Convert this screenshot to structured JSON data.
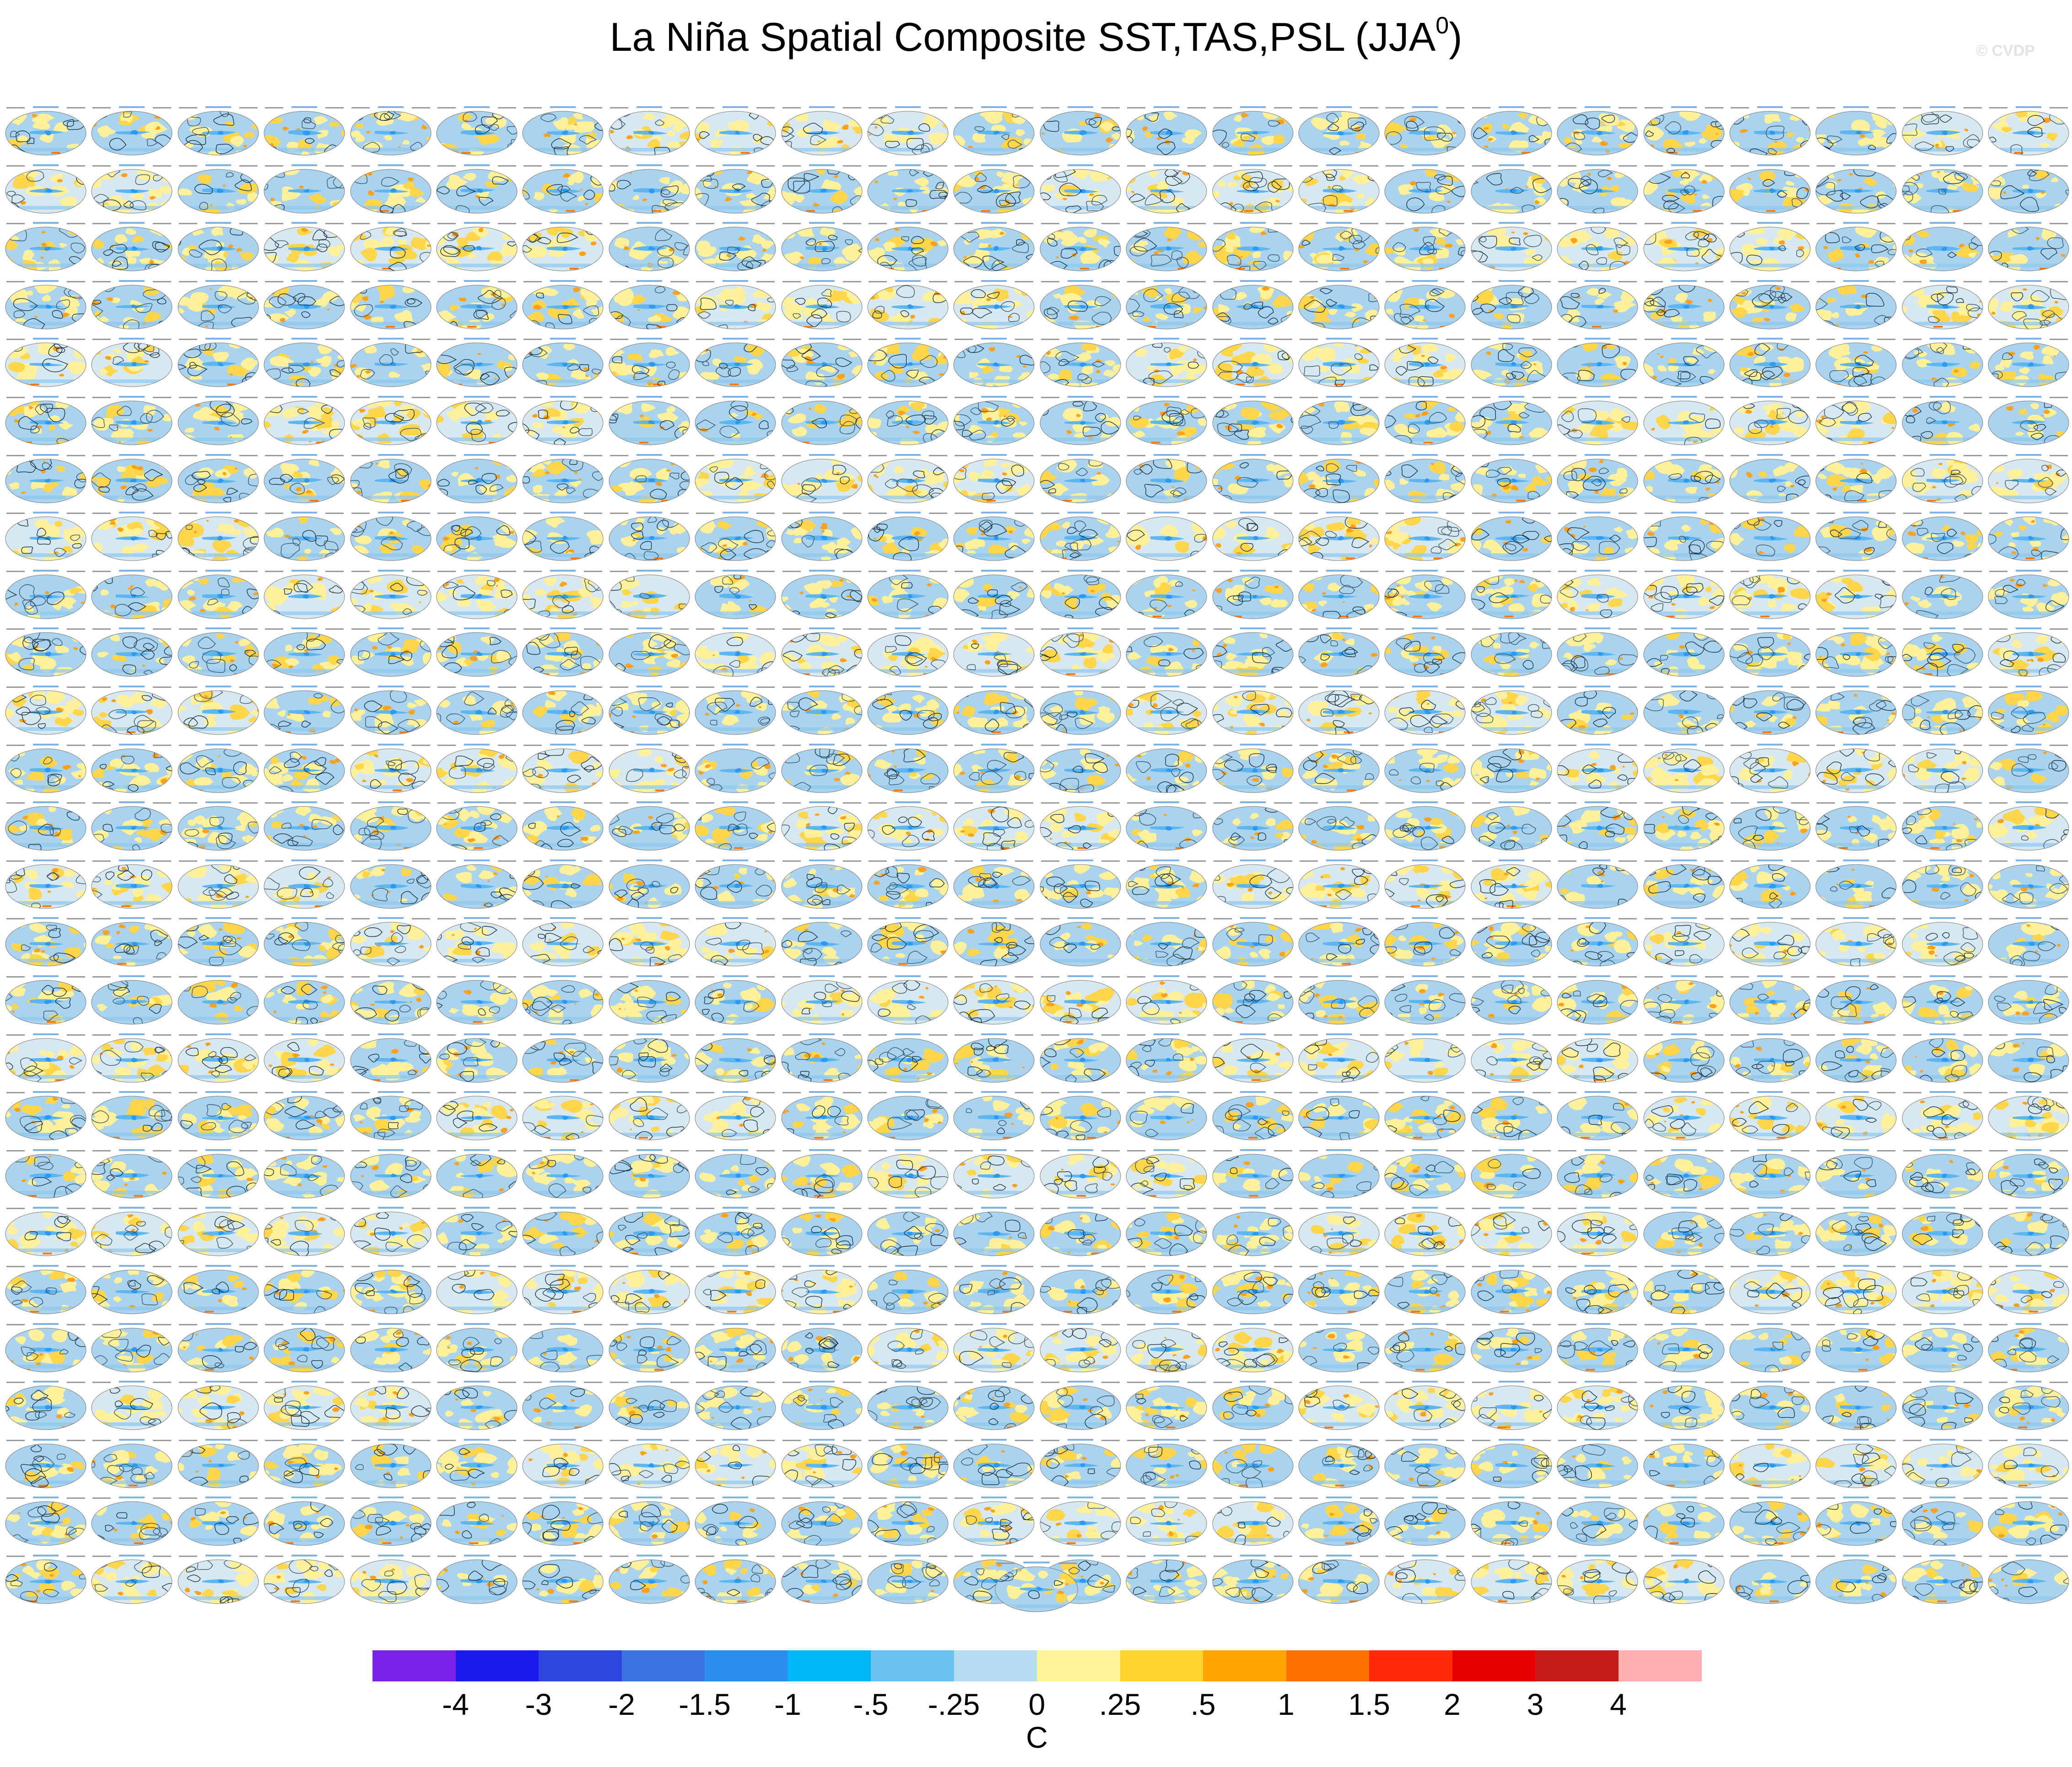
{
  "title": "La Niña Spatial Composite SST,TAS,PSL (JJA",
  "title_superscript": "0",
  "title_close": ")",
  "watermark": "© CVDP",
  "panels": {
    "rows": 26,
    "columns": 24,
    "has_mean_panel": true
  },
  "colorbar": {
    "colors": [
      "#7b22e8",
      "#1a1aee",
      "#2d46e0",
      "#3a75e2",
      "#2a8fef",
      "#00b8f5",
      "#6cc2ee",
      "#b5dcf0",
      "#fff59a",
      "#ffd42e",
      "#ffa400",
      "#ff7200",
      "#ff2b0a",
      "#e80000",
      "#c71b1b",
      "#ffb0b0"
    ],
    "labels": [
      "-4",
      "-3",
      "-2",
      "-1.5",
      "-1",
      "-.5",
      "-.25",
      "0",
      ".25",
      ".5",
      "1",
      "1.5",
      "2",
      "3",
      "4"
    ],
    "units": "C"
  }
}
